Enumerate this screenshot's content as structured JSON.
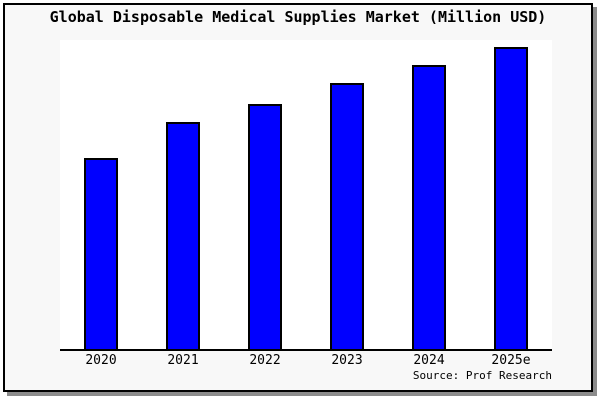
{
  "window": {
    "background": "#f8f8f8",
    "plot_background": "#ffffff",
    "border_color": "#000000",
    "shadow_color": "#8c8c8c"
  },
  "title": "Global Disposable Medical Supplies Market (Million USD)",
  "source_note": "Source: Prof Research",
  "chart_data": {
    "type": "bar",
    "title": "Global Disposable Medical Supplies Market (Million USD)",
    "categories": [
      "2020",
      "2021",
      "2022",
      "2023",
      "2024",
      "2025e"
    ],
    "values": [
      63,
      75,
      81,
      88,
      94,
      100
    ],
    "values_note": "relative index estimated from bar heights; no y-axis scale shown; 2025e = 100",
    "xlabel": "",
    "ylabel": "",
    "ylim": [
      0,
      103
    ],
    "grid": false,
    "legend": false,
    "y_axis_visible": false,
    "bar_color": "#0000ff",
    "bar_border_color": "#000000",
    "source_note": "Source: Prof Research"
  }
}
